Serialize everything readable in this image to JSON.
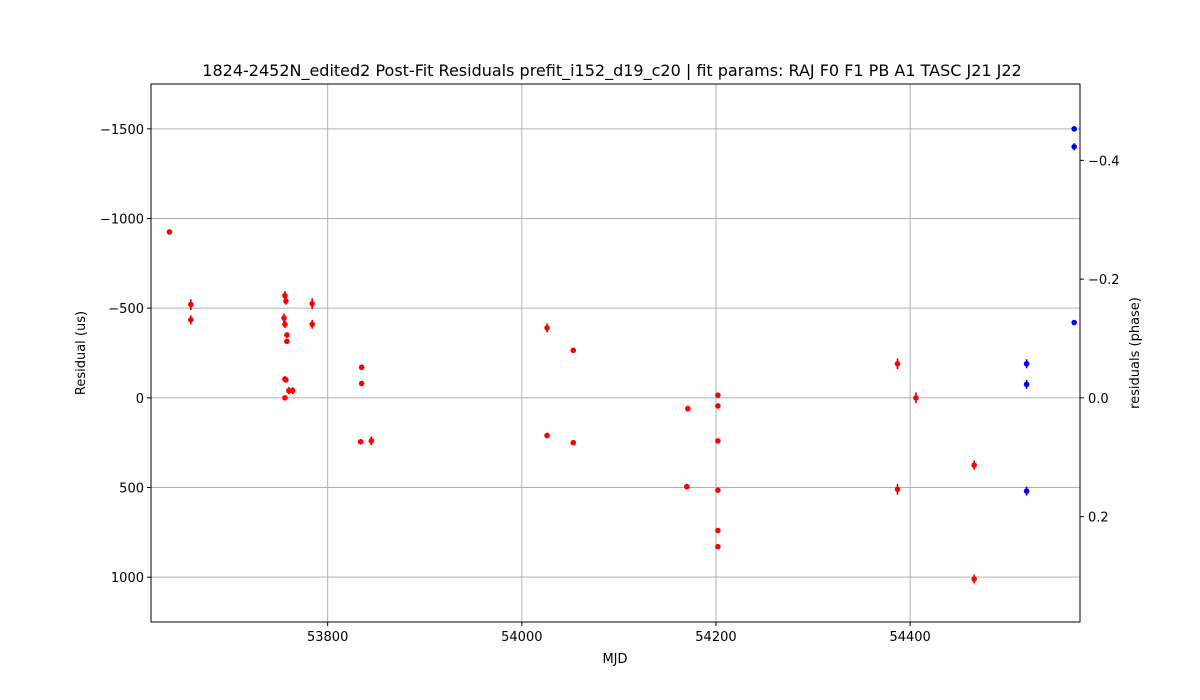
{
  "chart_data": {
    "type": "scatter",
    "title": "1824-2452N_edited2 Post-Fit Residuals prefit_i152_d19_c20 | fit params: RAJ F0 F1 PB A1 TASC J21 J22",
    "xlabel": "MJD",
    "ylabel": "Residual (us)",
    "y2label": "residuals (phase)",
    "xlim": [
      53618,
      54575
    ],
    "ylim": [
      1250,
      -1750
    ],
    "y_inverted": true,
    "y2lim": [
      0.3775,
      -0.5286
    ],
    "x_ticks": [
      53800,
      54000,
      54200,
      54400
    ],
    "y_ticks": [
      -1500,
      -1000,
      -500,
      0,
      500,
      1000
    ],
    "y_tick_labels": [
      "−1500",
      "−1000",
      "−500",
      "0",
      "500",
      "1000"
    ],
    "y2_ticks": [
      -0.4,
      -0.2,
      0.0,
      0.2
    ],
    "y2_tick_labels": [
      "−0.4",
      "−0.2",
      "0.0",
      "0.2"
    ],
    "grid": true,
    "series": [
      {
        "color": "#ff0000",
        "error_color": "#cc0000",
        "points": [
          {
            "x": 53637,
            "y": -925,
            "err": 15
          },
          {
            "x": 53659,
            "y": -520,
            "err": 30
          },
          {
            "x": 53659,
            "y": -435,
            "err": 25
          },
          {
            "x": 53756,
            "y": -570,
            "err": 25
          },
          {
            "x": 53757,
            "y": -540,
            "err": 20
          },
          {
            "x": 53755,
            "y": -445,
            "err": 25
          },
          {
            "x": 53756,
            "y": -410,
            "err": 20
          },
          {
            "x": 53758,
            "y": -350,
            "err": 15
          },
          {
            "x": 53758,
            "y": -315,
            "err": 15
          },
          {
            "x": 53756,
            "y": -105,
            "err": 15
          },
          {
            "x": 53757,
            "y": -100,
            "err": 15
          },
          {
            "x": 53760,
            "y": -40,
            "err": 20
          },
          {
            "x": 53764,
            "y": -40,
            "err": 20
          },
          {
            "x": 53756,
            "y": 0,
            "err": 10
          },
          {
            "x": 53784,
            "y": -525,
            "err": 30
          },
          {
            "x": 53784,
            "y": -410,
            "err": 25
          },
          {
            "x": 53835,
            "y": -170,
            "err": 15
          },
          {
            "x": 53835,
            "y": -80,
            "err": 10
          },
          {
            "x": 53834,
            "y": 245,
            "err": 15
          },
          {
            "x": 53845,
            "y": 240,
            "err": 25
          },
          {
            "x": 54026,
            "y": -390,
            "err": 25
          },
          {
            "x": 54053,
            "y": -265,
            "err": 10
          },
          {
            "x": 54026,
            "y": 210,
            "err": 15
          },
          {
            "x": 54053,
            "y": 250,
            "err": 10
          },
          {
            "x": 54171,
            "y": 60,
            "err": 15
          },
          {
            "x": 54170,
            "y": 495,
            "err": 15
          },
          {
            "x": 54202,
            "y": -15,
            "err": 10
          },
          {
            "x": 54202,
            "y": 45,
            "err": 10
          },
          {
            "x": 54202,
            "y": 240,
            "err": 10
          },
          {
            "x": 54202,
            "y": 515,
            "err": 10
          },
          {
            "x": 54202,
            "y": 740,
            "err": 10
          },
          {
            "x": 54202,
            "y": 830,
            "err": 10
          },
          {
            "x": 54387,
            "y": -190,
            "err": 30
          },
          {
            "x": 54387,
            "y": 510,
            "err": 30
          },
          {
            "x": 54406,
            "y": 0,
            "err": 30
          },
          {
            "x": 54466,
            "y": 375,
            "err": 25
          },
          {
            "x": 54466,
            "y": 1010,
            "err": 25
          }
        ]
      },
      {
        "color": "#0000ff",
        "error_color": "#0000aa",
        "points": [
          {
            "x": 54569,
            "y": -1500,
            "err": 10
          },
          {
            "x": 54569,
            "y": -1400,
            "err": 20
          },
          {
            "x": 54569,
            "y": -420,
            "err": 10
          },
          {
            "x": 54520,
            "y": -190,
            "err": 25
          },
          {
            "x": 54520,
            "y": -75,
            "err": 25
          },
          {
            "x": 54520,
            "y": 520,
            "err": 25
          }
        ]
      }
    ]
  }
}
